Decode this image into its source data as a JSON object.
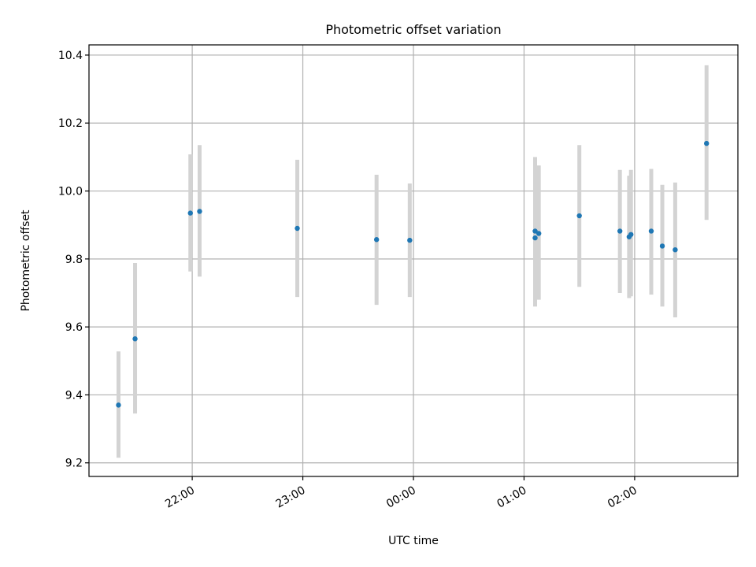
{
  "chart_data": {
    "type": "scatter",
    "title": "Photometric offset variation",
    "xlabel": "UTC time",
    "ylabel": "Photometric offset",
    "x_ticks": [
      "22:00",
      "23:00",
      "00:00",
      "01:00",
      "02:00"
    ],
    "y_ticks": [
      "9.2",
      "9.4",
      "9.6",
      "9.8",
      "10.0",
      "10.2",
      "10.4"
    ],
    "xlim": [
      "21:04",
      "02:56"
    ],
    "ylim": [
      9.16,
      10.43
    ],
    "grid": true,
    "error_bars": true,
    "colors": {
      "points": "#1f77b4",
      "error_bars": "#d3d3d3",
      "grid": "#b0b0b0"
    },
    "series": [
      {
        "x": [
          "21:20",
          "21:29",
          "21:59",
          "22:04",
          "22:57",
          "23:40",
          "23:58",
          "01:06",
          "01:06",
          "01:08",
          "01:30",
          "01:52",
          "01:57",
          "01:58",
          "02:09",
          "02:15",
          "02:22",
          "02:39"
        ],
        "y": [
          9.37,
          9.565,
          9.935,
          9.94,
          9.89,
          9.857,
          9.855,
          9.862,
          9.882,
          9.875,
          9.927,
          9.882,
          9.865,
          9.872,
          9.882,
          9.838,
          9.827,
          10.14
        ],
        "err_low": [
          9.215,
          9.345,
          9.763,
          9.748,
          9.688,
          9.665,
          9.688,
          9.66,
          9.665,
          9.68,
          9.718,
          9.7,
          9.685,
          9.69,
          9.695,
          9.66,
          9.628,
          9.915
        ],
        "err_high": [
          9.528,
          9.788,
          10.108,
          10.135,
          10.092,
          10.048,
          10.022,
          10.065,
          10.1,
          10.075,
          10.135,
          10.062,
          10.045,
          10.062,
          10.065,
          10.018,
          10.025,
          10.37
        ]
      }
    ]
  }
}
